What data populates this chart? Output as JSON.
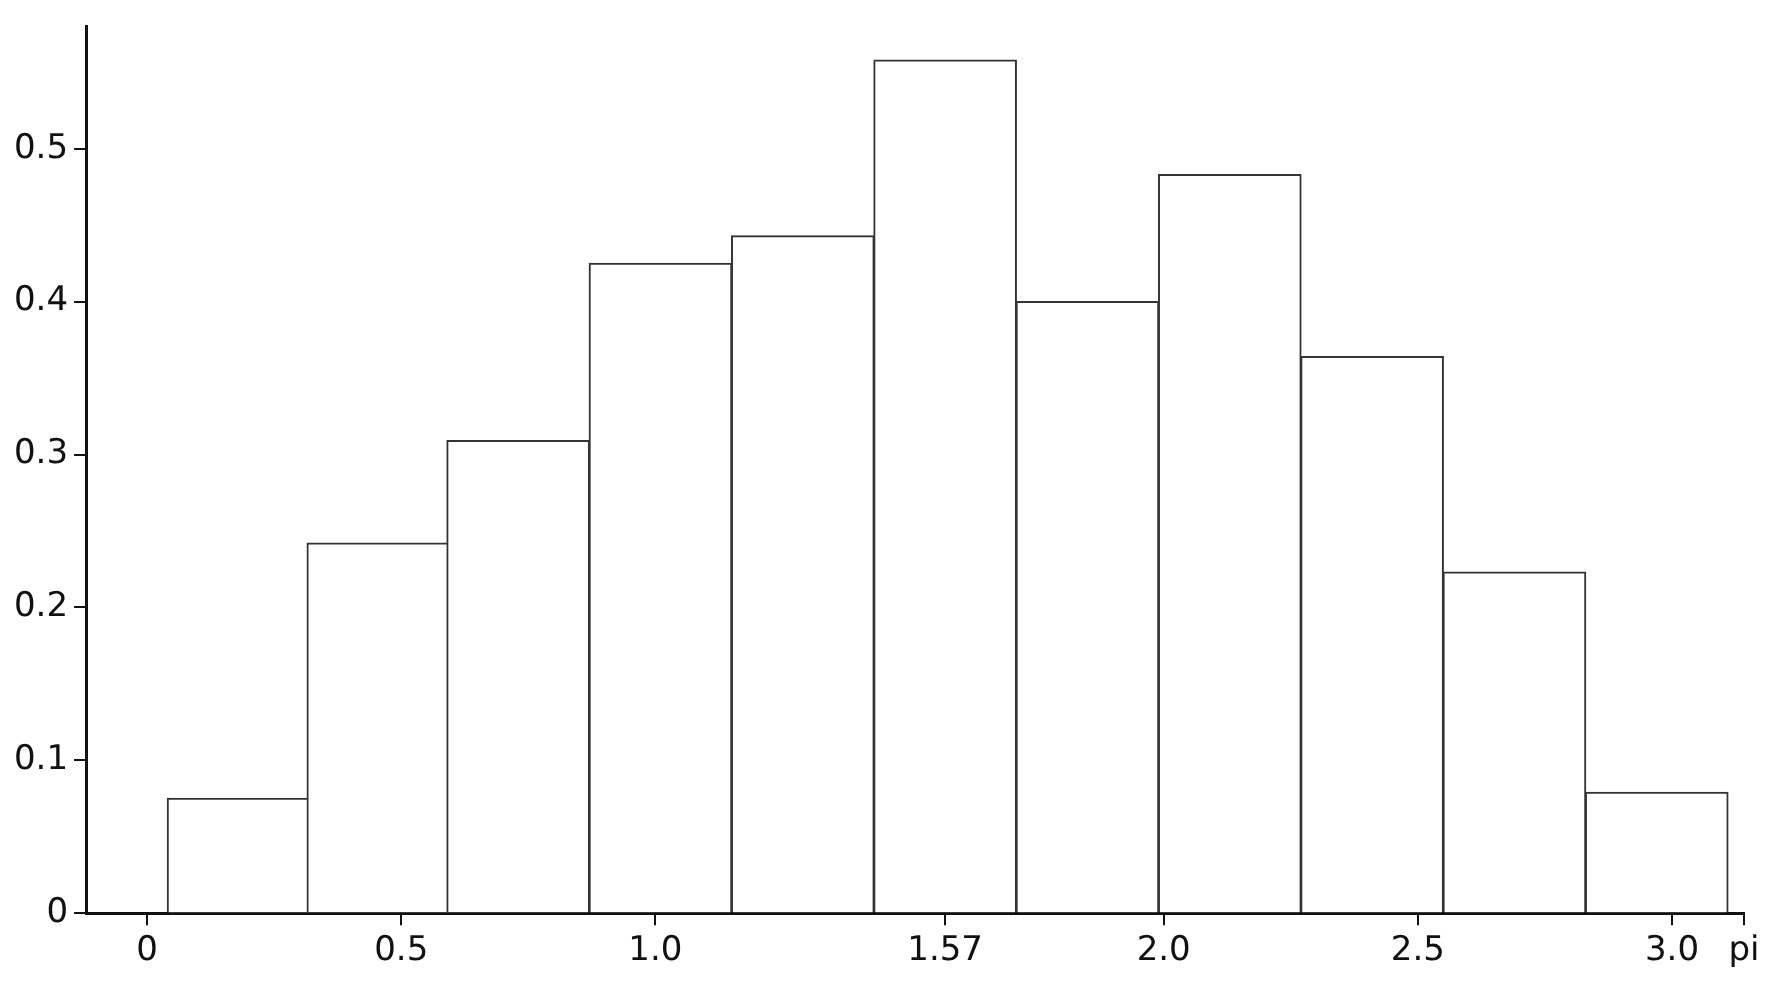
{
  "chart_data": {
    "type": "histogram",
    "bins": [
      0.04,
      0.32,
      0.59,
      0.87,
      1.15,
      1.43,
      1.71,
      1.99,
      2.27,
      2.55,
      2.83,
      3.11
    ],
    "values": [
      0.075,
      0.242,
      0.309,
      0.425,
      0.443,
      0.558,
      0.4,
      0.483,
      0.364,
      0.223,
      0.079
    ],
    "color": "#ffffff",
    "xlim": [
      -0.12,
      3.1416
    ],
    "xticks": [
      0,
      0.5,
      {
        "value": 1,
        "label": "1.0"
      },
      1.57,
      {
        "value": 2,
        "label": "2.0"
      },
      2.5,
      {
        "value": 3,
        "label": "3.0"
      },
      {
        "value": 3.1416,
        "label": "pi"
      }
    ],
    "ylim": [
      0,
      0.58
    ],
    "yticks": [
      0,
      0.1,
      0.2,
      0.3,
      0.4,
      0.5
    ]
  }
}
